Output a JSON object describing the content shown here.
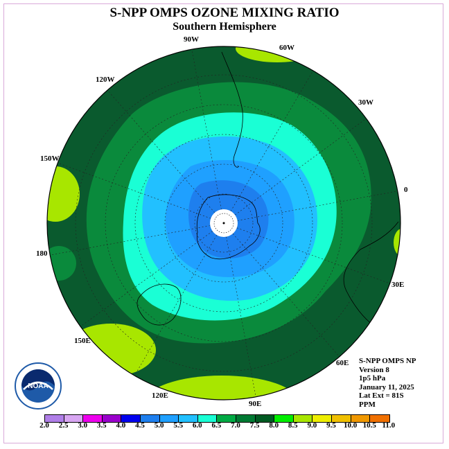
{
  "title": "S-NPP OMPS OZONE MIXING RATIO",
  "subtitle": "Southern Hemisphere",
  "longitude_labels": [
    "90W",
    "60W",
    "30W",
    "0",
    "30E",
    "60E",
    "90E",
    "120E",
    "150E",
    "180",
    "150W",
    "120W"
  ],
  "info": {
    "line1": "S-NPP OMPS NP",
    "line2": "Version 8",
    "line3": "1p5 hPa",
    "line4": "January 11, 2025",
    "line5": "Lat Ext = 81S",
    "line6": "PPM"
  },
  "logo": {
    "text": "NOAA",
    "icon": "noaa-logo"
  },
  "colorbar": {
    "ticks": [
      "2.0",
      "2.5",
      "3.0",
      "3.5",
      "4.0",
      "4.5",
      "5.0",
      "5.5",
      "6.0",
      "6.5",
      "7.0",
      "7.5",
      "8.0",
      "8.5",
      "9.0",
      "9.5",
      "10.0",
      "10.5",
      "11.0"
    ],
    "colors": [
      "#b07fe8",
      "#d8a6f2",
      "#ee00ee",
      "#9a00cc",
      "#0000ee",
      "#1e7fee",
      "#1fa0ff",
      "#22c0ff",
      "#1affd5",
      "#00aa44",
      "#007a33",
      "#005a22",
      "#00ee00",
      "#a8e600",
      "#eeee00",
      "#f0c000",
      "#f09800",
      "#f07000",
      "#ee0000",
      "#8a5a3a"
    ]
  },
  "map_colors": {
    "dark_green": "#0a5a2e",
    "medium_green": "#0a8a3c",
    "light_green_yellow": "#a8e600",
    "cyan": "#1affd5",
    "light_blue": "#22c0ff",
    "blue": "#1fa0ff",
    "deep_blue": "#1e7fee",
    "pole": "#ffffff"
  }
}
